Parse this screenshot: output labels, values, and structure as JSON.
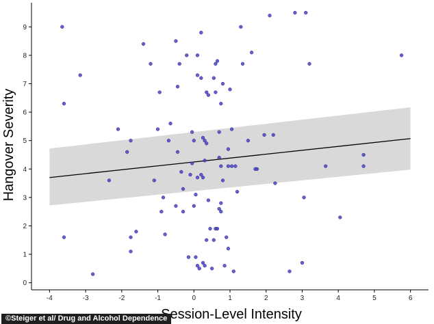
{
  "chart_data": {
    "type": "scatter",
    "title": "",
    "xlabel": "Session-Level Intensity",
    "ylabel": "Hangover Severity",
    "xlim": [
      -4.5,
      6.5
    ],
    "ylim": [
      -0.25,
      9.85
    ],
    "xticks": [
      -4,
      -3,
      -2,
      -1,
      0,
      1,
      2,
      3,
      4,
      5,
      6
    ],
    "yticks": [
      0,
      1,
      2,
      3,
      4,
      5,
      6,
      7,
      8,
      9
    ],
    "grid": false,
    "legend": "none",
    "colors": {
      "points": "#4a44c8",
      "point_stroke": "#2a2580",
      "regression_line": "#000000",
      "confidence_band": "#d9d9d9",
      "axis": "#000000"
    },
    "points": [
      [
        -3.65,
        9.0
      ],
      [
        -3.6,
        6.3
      ],
      [
        -3.6,
        1.6
      ],
      [
        -3.15,
        7.3
      ],
      [
        -2.8,
        0.3
      ],
      [
        -2.35,
        3.6
      ],
      [
        -2.1,
        5.4
      ],
      [
        -1.85,
        4.6
      ],
      [
        -1.75,
        5.0
      ],
      [
        -1.75,
        1.6
      ],
      [
        -1.75,
        1.1
      ],
      [
        -1.6,
        1.8
      ],
      [
        -1.4,
        8.4
      ],
      [
        -1.2,
        7.7
      ],
      [
        -1.1,
        3.6
      ],
      [
        -1.0,
        5.4
      ],
      [
        -0.95,
        6.7
      ],
      [
        -0.9,
        2.5
      ],
      [
        -0.85,
        3.0
      ],
      [
        -0.8,
        1.7
      ],
      [
        -0.7,
        5.0
      ],
      [
        -0.65,
        5.6
      ],
      [
        -0.5,
        2.7
      ],
      [
        -0.5,
        8.5
      ],
      [
        -0.45,
        6.9
      ],
      [
        -0.4,
        7.7
      ],
      [
        -0.45,
        4.6
      ],
      [
        -0.35,
        3.9
      ],
      [
        -0.3,
        3.3
      ],
      [
        -0.3,
        2.5
      ],
      [
        -0.2,
        8.0
      ],
      [
        -0.15,
        0.9
      ],
      [
        -0.1,
        3.8
      ],
      [
        -0.05,
        5.3
      ],
      [
        -0.05,
        4.2
      ],
      [
        0.0,
        5.0
      ],
      [
        0.0,
        2.7
      ],
      [
        0.05,
        3.1
      ],
      [
        0.05,
        0.9
      ],
      [
        0.1,
        8.0
      ],
      [
        0.1,
        7.3
      ],
      [
        0.1,
        3.7
      ],
      [
        0.1,
        0.6
      ],
      [
        0.15,
        0.5
      ],
      [
        0.2,
        8.8
      ],
      [
        0.2,
        7.2
      ],
      [
        0.2,
        3.8
      ],
      [
        0.25,
        5.1
      ],
      [
        0.25,
        3.7
      ],
      [
        0.25,
        0.7
      ],
      [
        0.3,
        4.3
      ],
      [
        0.3,
        5.0
      ],
      [
        0.3,
        0.6
      ],
      [
        0.35,
        6.7
      ],
      [
        0.35,
        4.9
      ],
      [
        0.4,
        6.6
      ],
      [
        0.35,
        1.5
      ],
      [
        0.4,
        2.9
      ],
      [
        0.45,
        1.9
      ],
      [
        0.5,
        0.5
      ],
      [
        0.55,
        7.2
      ],
      [
        0.55,
        1.5
      ],
      [
        0.6,
        7.7
      ],
      [
        0.6,
        6.7
      ],
      [
        0.6,
        1.9
      ],
      [
        0.65,
        1.9
      ],
      [
        0.65,
        7.8
      ],
      [
        0.7,
        2.6
      ],
      [
        0.7,
        5.3
      ],
      [
        0.7,
        4.4
      ],
      [
        0.75,
        6.3
      ],
      [
        0.75,
        4.1
      ],
      [
        0.75,
        2.8
      ],
      [
        0.75,
        2.5
      ],
      [
        0.8,
        3.6
      ],
      [
        0.8,
        7.0
      ],
      [
        0.85,
        0.6
      ],
      [
        0.9,
        1.6
      ],
      [
        0.95,
        1.2
      ],
      [
        0.95,
        4.7
      ],
      [
        0.95,
        4.1
      ],
      [
        1.0,
        6.8
      ],
      [
        1.05,
        5.4
      ],
      [
        1.05,
        4.1
      ],
      [
        1.1,
        0.4
      ],
      [
        1.15,
        4.1
      ],
      [
        1.2,
        3.2
      ],
      [
        1.3,
        9.0
      ],
      [
        1.35,
        7.7
      ],
      [
        1.5,
        5.0
      ],
      [
        1.6,
        8.1
      ],
      [
        1.7,
        4.0
      ],
      [
        1.75,
        4.0
      ],
      [
        1.95,
        5.2
      ],
      [
        2.1,
        9.4
      ],
      [
        2.2,
        5.2
      ],
      [
        2.25,
        3.5
      ],
      [
        2.65,
        0.4
      ],
      [
        2.8,
        9.5
      ],
      [
        3.0,
        0.7
      ],
      [
        3.05,
        3.0
      ],
      [
        3.1,
        9.5
      ],
      [
        3.2,
        7.7
      ],
      [
        3.65,
        4.1
      ],
      [
        4.05,
        2.3
      ],
      [
        4.7,
        4.5
      ],
      [
        4.7,
        4.1
      ],
      [
        5.75,
        8.0
      ]
    ],
    "regression": {
      "x": [
        -4.0,
        6.0
      ],
      "y": [
        3.7,
        5.07
      ],
      "ci_upper": [
        4.72,
        6.17
      ],
      "ci_lower": [
        2.72,
        3.98
      ]
    }
  },
  "credit": "©Steiger et al/ Drug and Alcohol Dependence"
}
